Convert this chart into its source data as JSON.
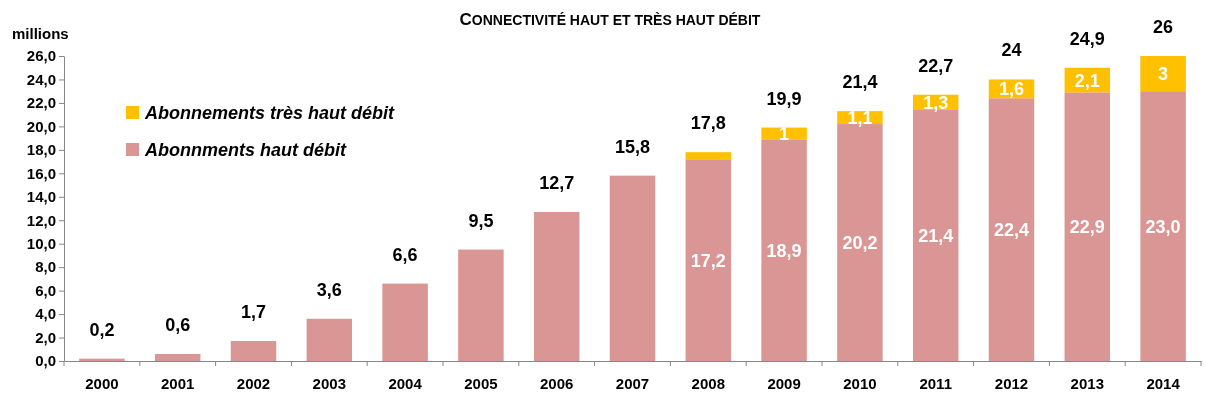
{
  "chart_data": {
    "type": "bar",
    "stacked": true,
    "title": "CONNECTIVITÉ HAUT ET TRÈS HAUT DÉBIT",
    "ylabel": "millions",
    "categories": [
      "2000",
      "2001",
      "2002",
      "2003",
      "2004",
      "2005",
      "2006",
      "2007",
      "2008",
      "2009",
      "2010",
      "2011",
      "2012",
      "2013",
      "2014"
    ],
    "series": [
      {
        "name": "Abonnments haut débit",
        "color": "#d99694",
        "values": [
          0.2,
          0.6,
          1.7,
          3.6,
          6.6,
          9.5,
          12.7,
          15.8,
          17.2,
          18.9,
          20.2,
          21.4,
          22.4,
          22.9,
          23.0
        ],
        "value_labels": [
          null,
          null,
          null,
          null,
          null,
          null,
          null,
          null,
          "17,2",
          "18,9",
          "20,2",
          "21,4",
          "22,4",
          "22,9",
          "23,0"
        ]
      },
      {
        "name": "Abonnements très haut débit",
        "color": "#ffc000",
        "values": [
          null,
          null,
          null,
          null,
          null,
          null,
          null,
          null,
          0.6,
          1,
          1.1,
          1.3,
          1.6,
          2.1,
          3
        ],
        "value_labels": [
          null,
          null,
          null,
          null,
          null,
          null,
          null,
          null,
          null,
          "1",
          "1,1",
          "1,3",
          "1,6",
          "2,1",
          "3"
        ]
      }
    ],
    "totals": [
      "0,2",
      "0,6",
      "1,7",
      "3,6",
      "6,6",
      "9,5",
      "12,7",
      "15,8",
      "17,8",
      "19,9",
      "21,4",
      "22,7",
      "24",
      "24,9",
      "26"
    ],
    "ylim": [
      0,
      26
    ],
    "yticks": [
      {
        "value": 0,
        "label": "0,0"
      },
      {
        "value": 2,
        "label": "2,0"
      },
      {
        "value": 4,
        "label": "4,0"
      },
      {
        "value": 6,
        "label": "6,0"
      },
      {
        "value": 8,
        "label": "8,0"
      },
      {
        "value": 10,
        "label": "10,0"
      },
      {
        "value": 12,
        "label": "12,0"
      },
      {
        "value": 14,
        "label": "14,0"
      },
      {
        "value": 16,
        "label": "16,0"
      },
      {
        "value": 18,
        "label": "18,0"
      },
      {
        "value": 20,
        "label": "20,0"
      },
      {
        "value": 22,
        "label": "22,0"
      },
      {
        "value": 24,
        "label": "24,0"
      },
      {
        "value": 26,
        "label": "26,0"
      }
    ],
    "legend": "top left"
  }
}
